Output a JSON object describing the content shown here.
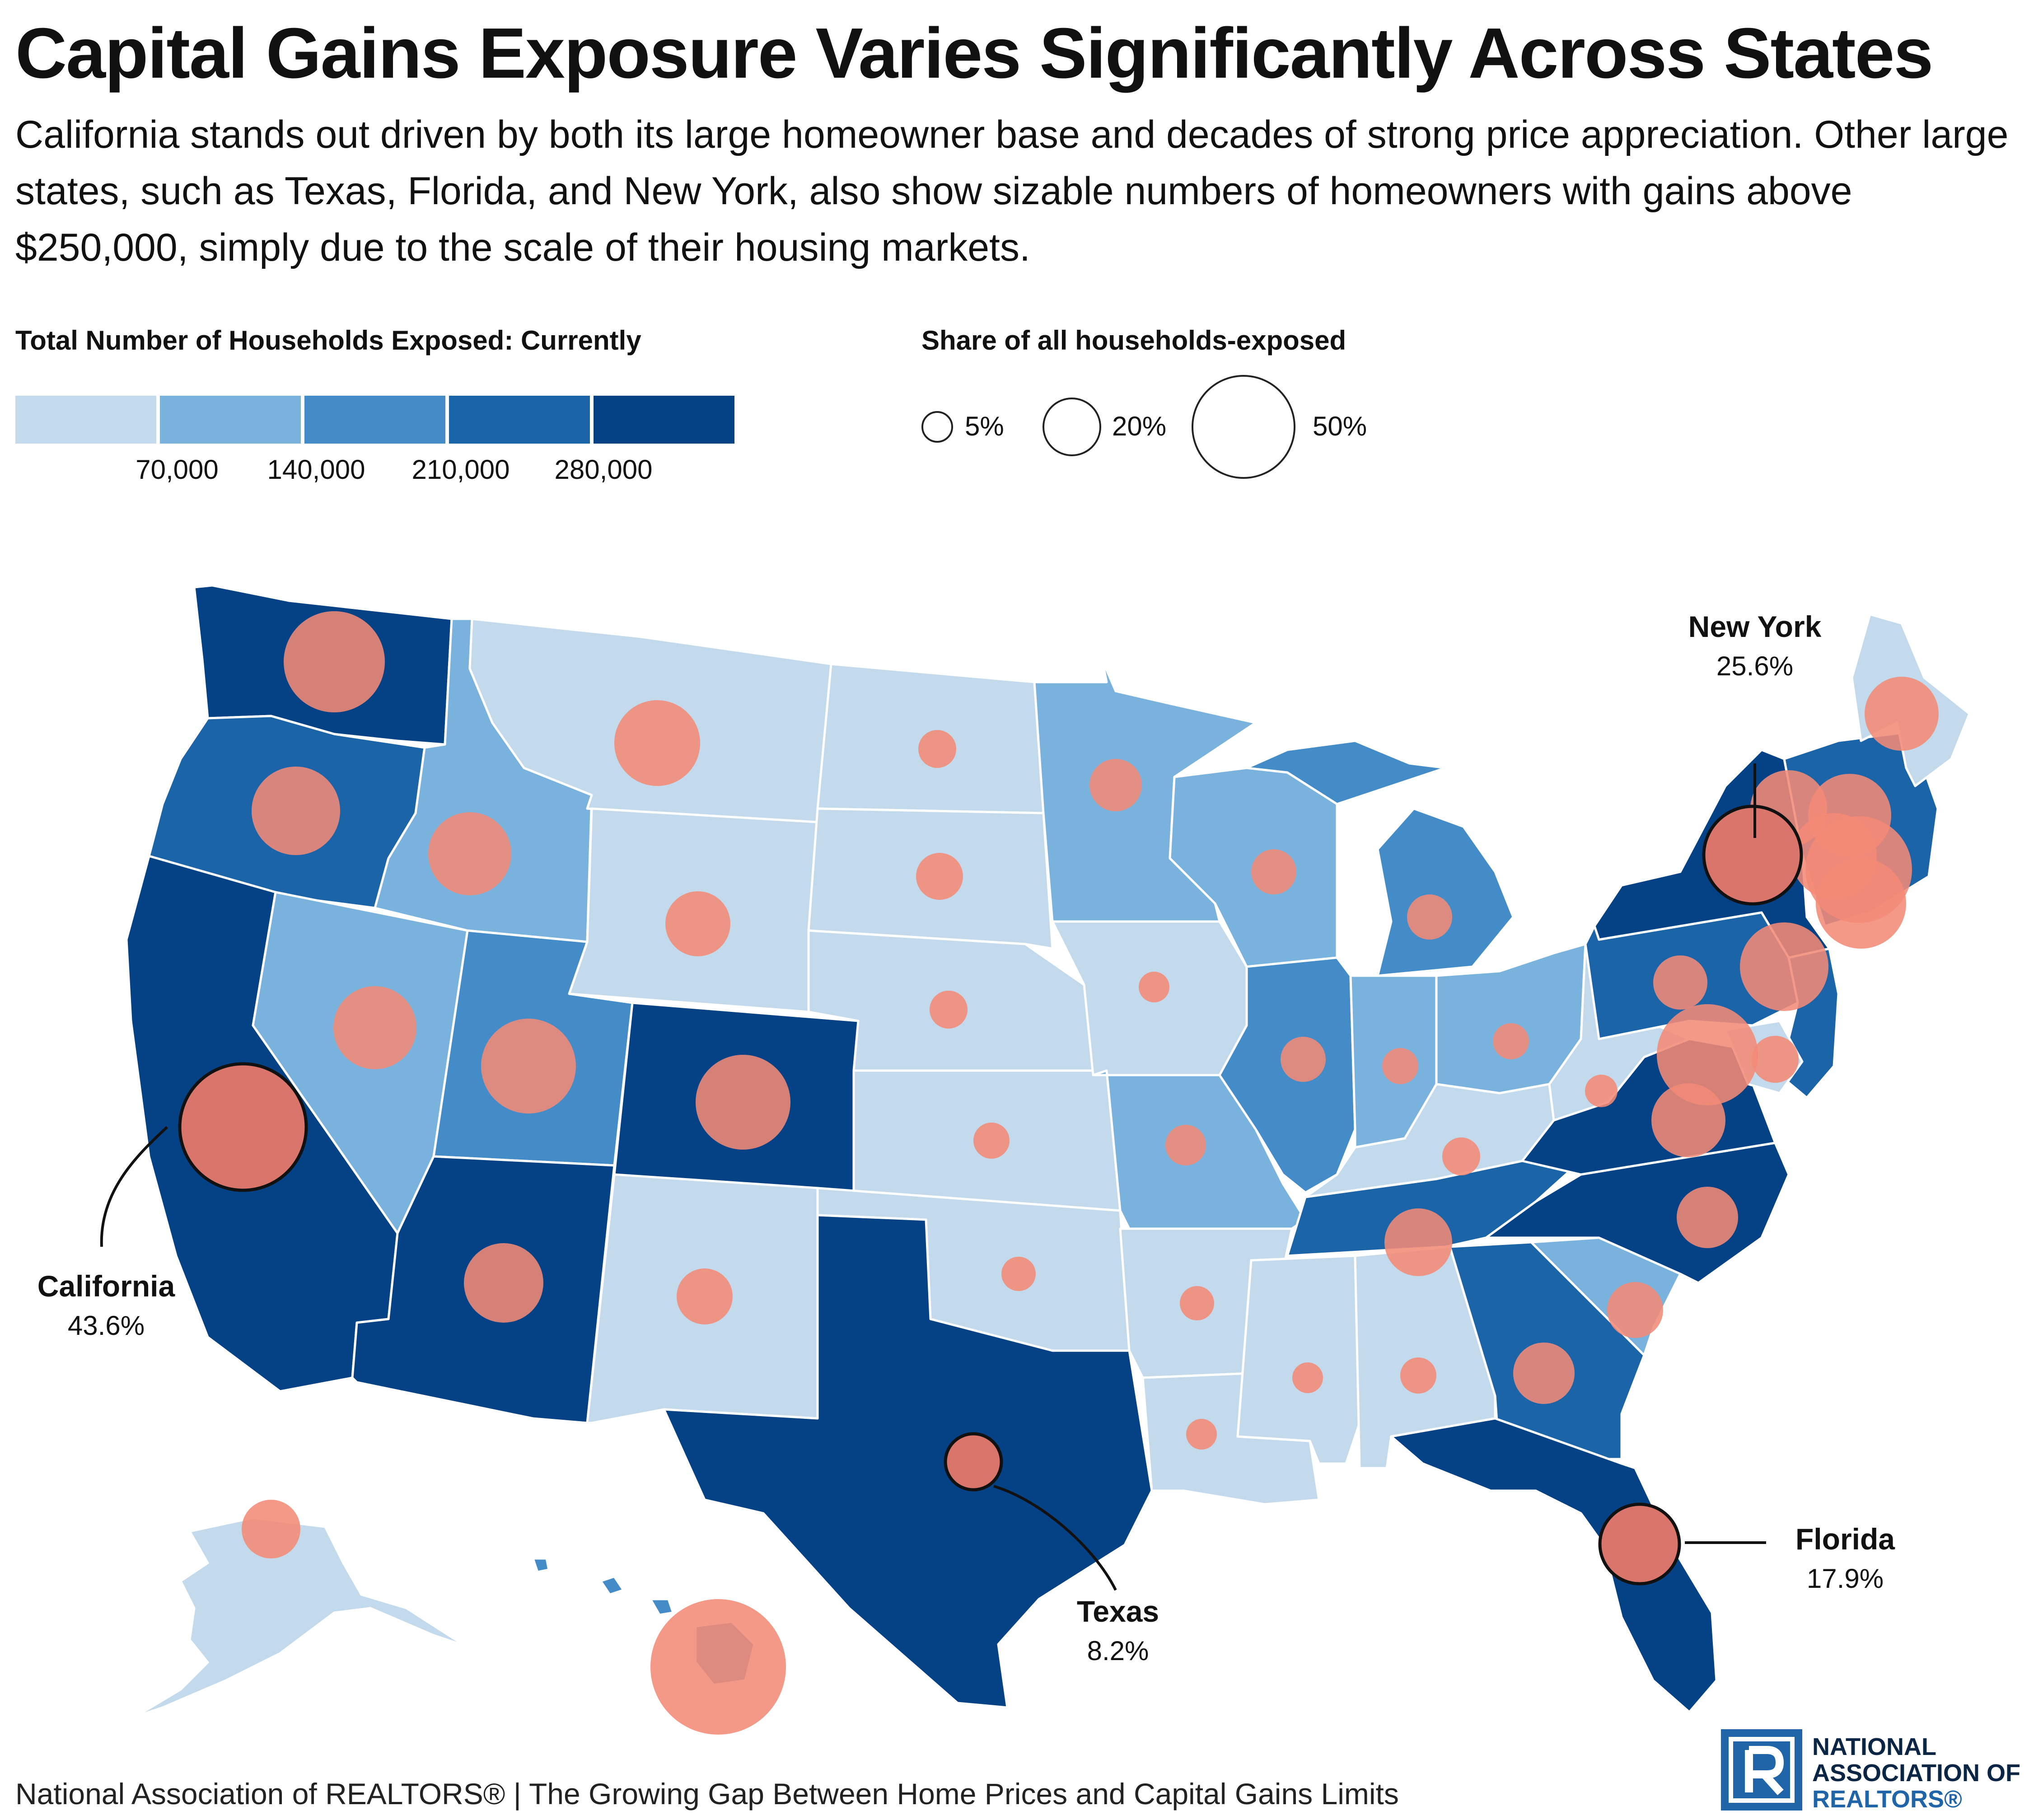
{
  "title": "Capital Gains Exposure Varies Significantly Across States",
  "subtitle": "California stands out driven by both its large homeowner base and decades of strong price appreciation. Other large states, such as Texas, Florida, and New York, also show sizable numbers of homeowners with gains above $250,000, simply due to the scale of their housing markets.",
  "legend": {
    "color_title": "Total Number of Households Exposed: Currently",
    "color_ticks": [
      "70,000",
      "140,000",
      "210,000",
      "280,000"
    ],
    "color_scale": [
      "#c3d9ec",
      "#7ab2de",
      "#438cc8",
      "#1b64a8",
      "#044185"
    ],
    "size_title": "Share of all households-exposed",
    "size_samples": [
      {
        "label": "5%",
        "value": 5
      },
      {
        "label": "20%",
        "value": 20
      },
      {
        "label": "50%",
        "value": 50
      }
    ]
  },
  "colors": {
    "bubble": "#f28a76",
    "bubble_highlight": "#d9756a",
    "state_border": "#ffffff"
  },
  "chart_data": {
    "type": "map",
    "color_bins": [
      0,
      70000,
      140000,
      210000,
      280000
    ],
    "states": [
      {
        "id": "WA",
        "bin": 4
      },
      {
        "id": "OR",
        "bin": 3
      },
      {
        "id": "CA",
        "bin": 4
      },
      {
        "id": "NV",
        "bin": 1
      },
      {
        "id": "ID",
        "bin": 1
      },
      {
        "id": "MT",
        "bin": 0
      },
      {
        "id": "WY",
        "bin": 0
      },
      {
        "id": "UT",
        "bin": 2
      },
      {
        "id": "AZ",
        "bin": 4
      },
      {
        "id": "CO",
        "bin": 4
      },
      {
        "id": "NM",
        "bin": 0
      },
      {
        "id": "ND",
        "bin": 0
      },
      {
        "id": "SD",
        "bin": 0
      },
      {
        "id": "NE",
        "bin": 0
      },
      {
        "id": "KS",
        "bin": 0
      },
      {
        "id": "OK",
        "bin": 0
      },
      {
        "id": "TX",
        "bin": 4
      },
      {
        "id": "MN",
        "bin": 1
      },
      {
        "id": "IA",
        "bin": 0
      },
      {
        "id": "MO",
        "bin": 1
      },
      {
        "id": "AR",
        "bin": 0
      },
      {
        "id": "LA",
        "bin": 0
      },
      {
        "id": "WI",
        "bin": 1
      },
      {
        "id": "IL",
        "bin": 2
      },
      {
        "id": "MI",
        "bin": 2
      },
      {
        "id": "IN",
        "bin": 1
      },
      {
        "id": "OH",
        "bin": 1
      },
      {
        "id": "KY",
        "bin": 0
      },
      {
        "id": "TN",
        "bin": 3
      },
      {
        "id": "MS",
        "bin": 0
      },
      {
        "id": "AL",
        "bin": 0
      },
      {
        "id": "GA",
        "bin": 3
      },
      {
        "id": "FL",
        "bin": 4
      },
      {
        "id": "SC",
        "bin": 1
      },
      {
        "id": "NC",
        "bin": 4
      },
      {
        "id": "VA",
        "bin": 4
      },
      {
        "id": "WV",
        "bin": 0
      },
      {
        "id": "PA",
        "bin": 3
      },
      {
        "id": "NY",
        "bin": 4
      },
      {
        "id": "NJ",
        "bin": 3
      },
      {
        "id": "ME",
        "bin": 0
      },
      {
        "id": "AK",
        "bin": 0
      },
      {
        "id": "HI",
        "bin": 2
      }
    ],
    "callouts": [
      {
        "state": "California",
        "value": "43.6%"
      },
      {
        "state": "New York",
        "value": "25.6%"
      },
      {
        "state": "Texas",
        "value": "8.2%"
      },
      {
        "state": "Florida",
        "value": "17.9%"
      }
    ]
  },
  "footer": {
    "source": "National Association of REALTORS® | The Growing Gap Between Home Prices and Capital Gains Limits",
    "logo_line1": "NATIONAL",
    "logo_line2": "ASSOCIATION OF",
    "logo_line3": "REALTORS®"
  }
}
